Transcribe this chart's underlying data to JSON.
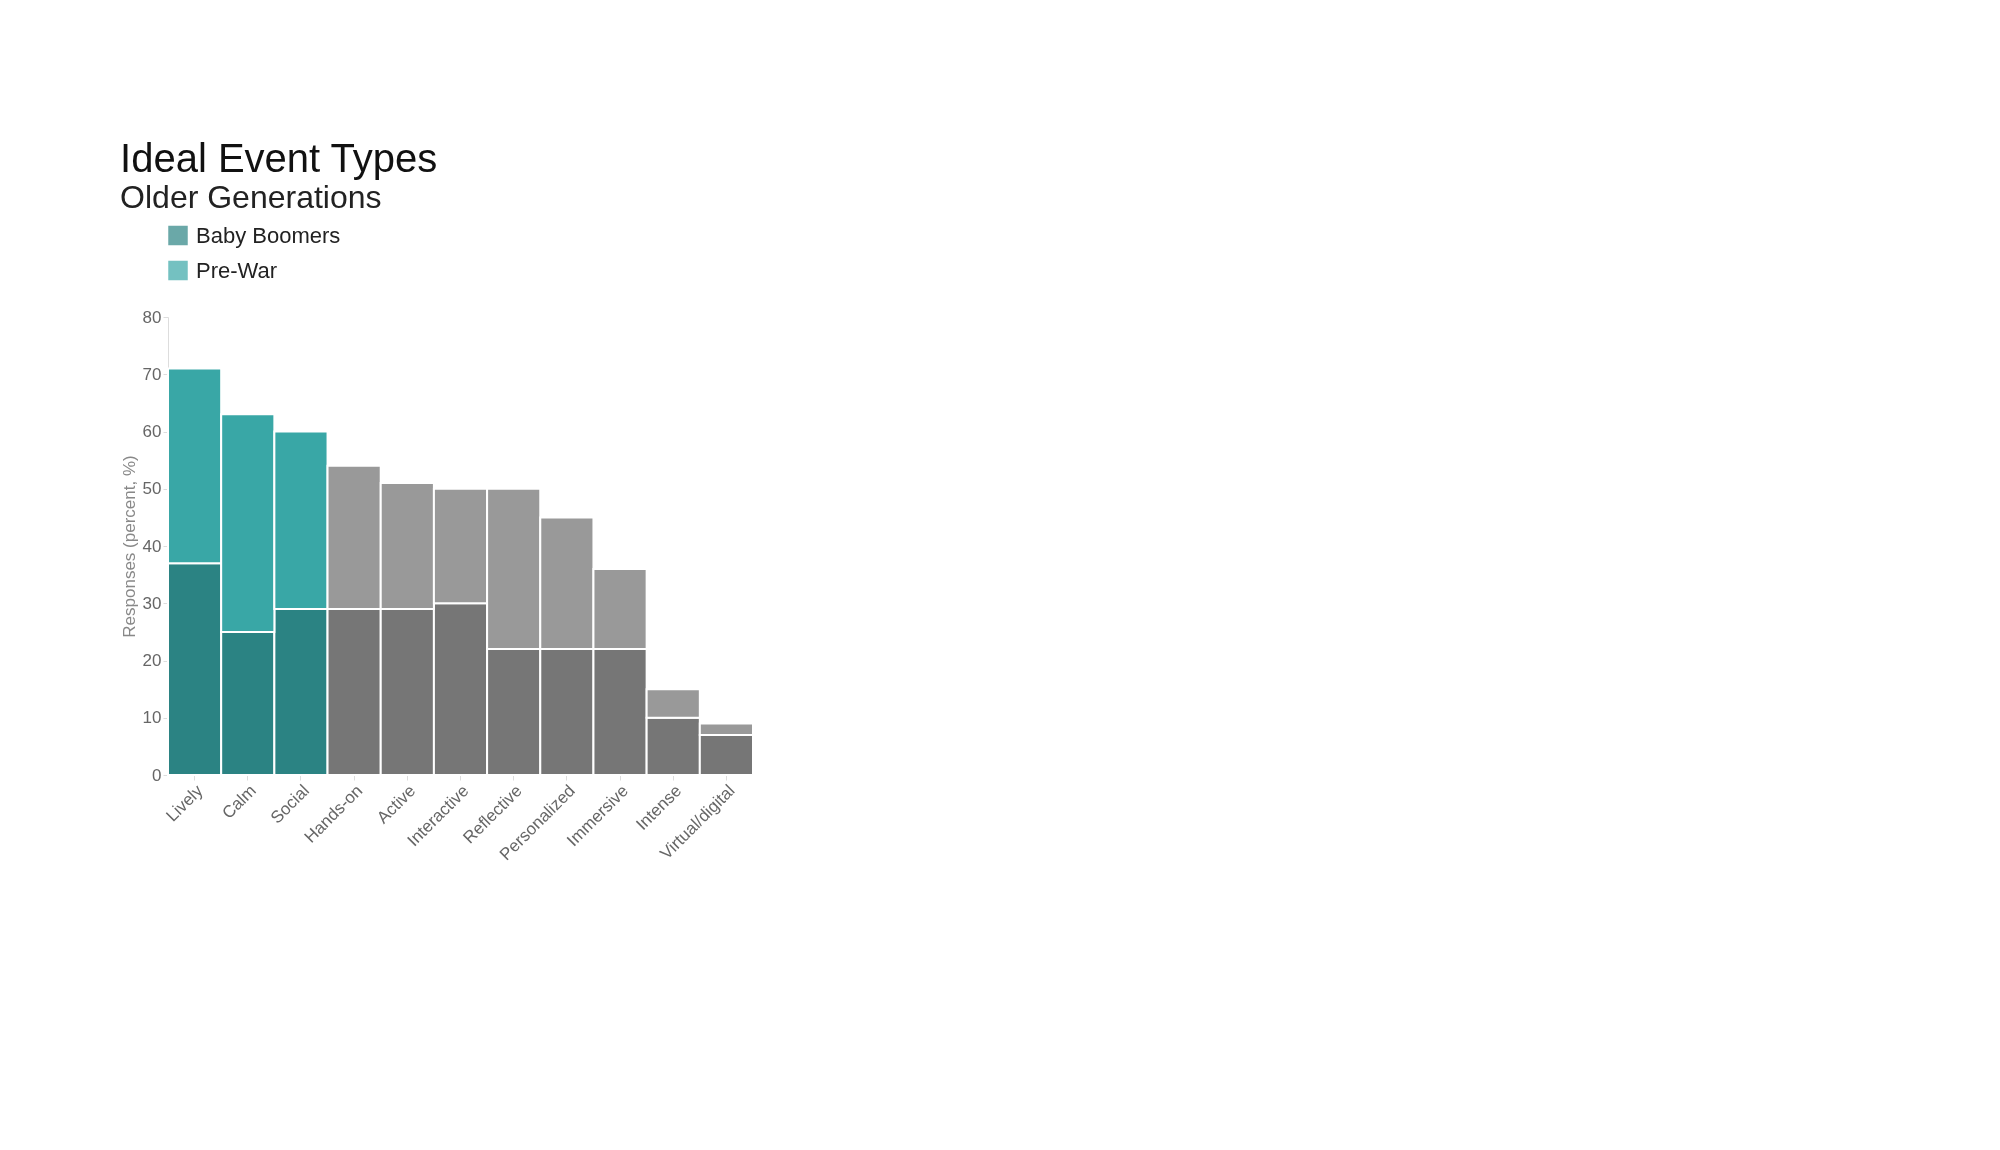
{
  "chart_data": {
    "type": "bar",
    "title": "Ideal Event Types",
    "subtitle": "Older Generations",
    "ylabel": "Responses (percent, %)",
    "categories": [
      "Lively",
      "Calm",
      "Social",
      "Hands-on",
      "Active",
      "Interactive",
      "Reflective",
      "Personalized",
      "Immersive",
      "Intense",
      "Virtual/digital"
    ],
    "stacked": true,
    "legend": "top left",
    "grid": false,
    "ylim": [
      0,
      80
    ],
    "yticks": [
      0,
      10,
      20,
      30,
      40,
      50,
      60,
      70,
      80
    ],
    "series": [
      {
        "name": "Baby Boomers",
        "color": "#2b8383",
        "colors": [
          "#2b8383",
          "#2b8383",
          "#2b8383",
          "#767676",
          "#767676",
          "#767676",
          "#767676",
          "#767676",
          "#767676",
          "#767676",
          "#767676"
        ],
        "values": [
          37,
          25,
          29,
          29,
          29,
          30,
          22,
          22,
          22,
          10,
          7
        ]
      },
      {
        "name": "Pre-War",
        "color": "#39a7a6",
        "colors": [
          "#39a7a6",
          "#39a7a6",
          "#39a7a6",
          "#999999",
          "#999999",
          "#999999",
          "#999999",
          "#999999",
          "#999999",
          "#999999",
          "#999999"
        ],
        "values": [
          34,
          38,
          31,
          25,
          22,
          20,
          28,
          23,
          14,
          5,
          2
        ]
      }
    ]
  }
}
